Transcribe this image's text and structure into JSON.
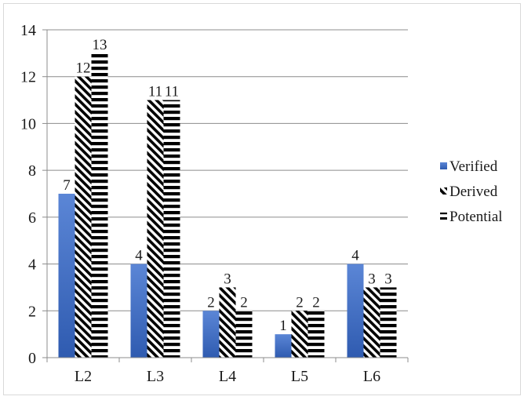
{
  "chart_data": {
    "type": "bar",
    "categories": [
      "L2",
      "L3",
      "L4",
      "L5",
      "L6"
    ],
    "series": [
      {
        "name": "Verified",
        "values": [
          7,
          4,
          2,
          1,
          4
        ],
        "color": "#4a72c4",
        "pattern": "solid-gradient"
      },
      {
        "name": "Derived",
        "values": [
          12,
          11,
          3,
          2,
          3
        ],
        "color": "#000000",
        "pattern": "diagonal-hatch"
      },
      {
        "name": "Potential",
        "values": [
          13,
          11,
          2,
          2,
          3
        ],
        "color": "#000000",
        "pattern": "horizontal-stripes"
      }
    ],
    "data_labels": [
      [
        "7",
        "4",
        "2",
        "1",
        "4"
      ],
      [
        "12",
        "11",
        "3",
        "2",
        "3"
      ],
      [
        "13",
        "11",
        "2",
        "2",
        "3"
      ]
    ],
    "ylim": [
      0,
      14
    ],
    "yticks": [
      0,
      2,
      4,
      6,
      8,
      10,
      12,
      14
    ],
    "grid": true,
    "legend_position": "right",
    "title": "",
    "xlabel": "",
    "ylabel": ""
  }
}
